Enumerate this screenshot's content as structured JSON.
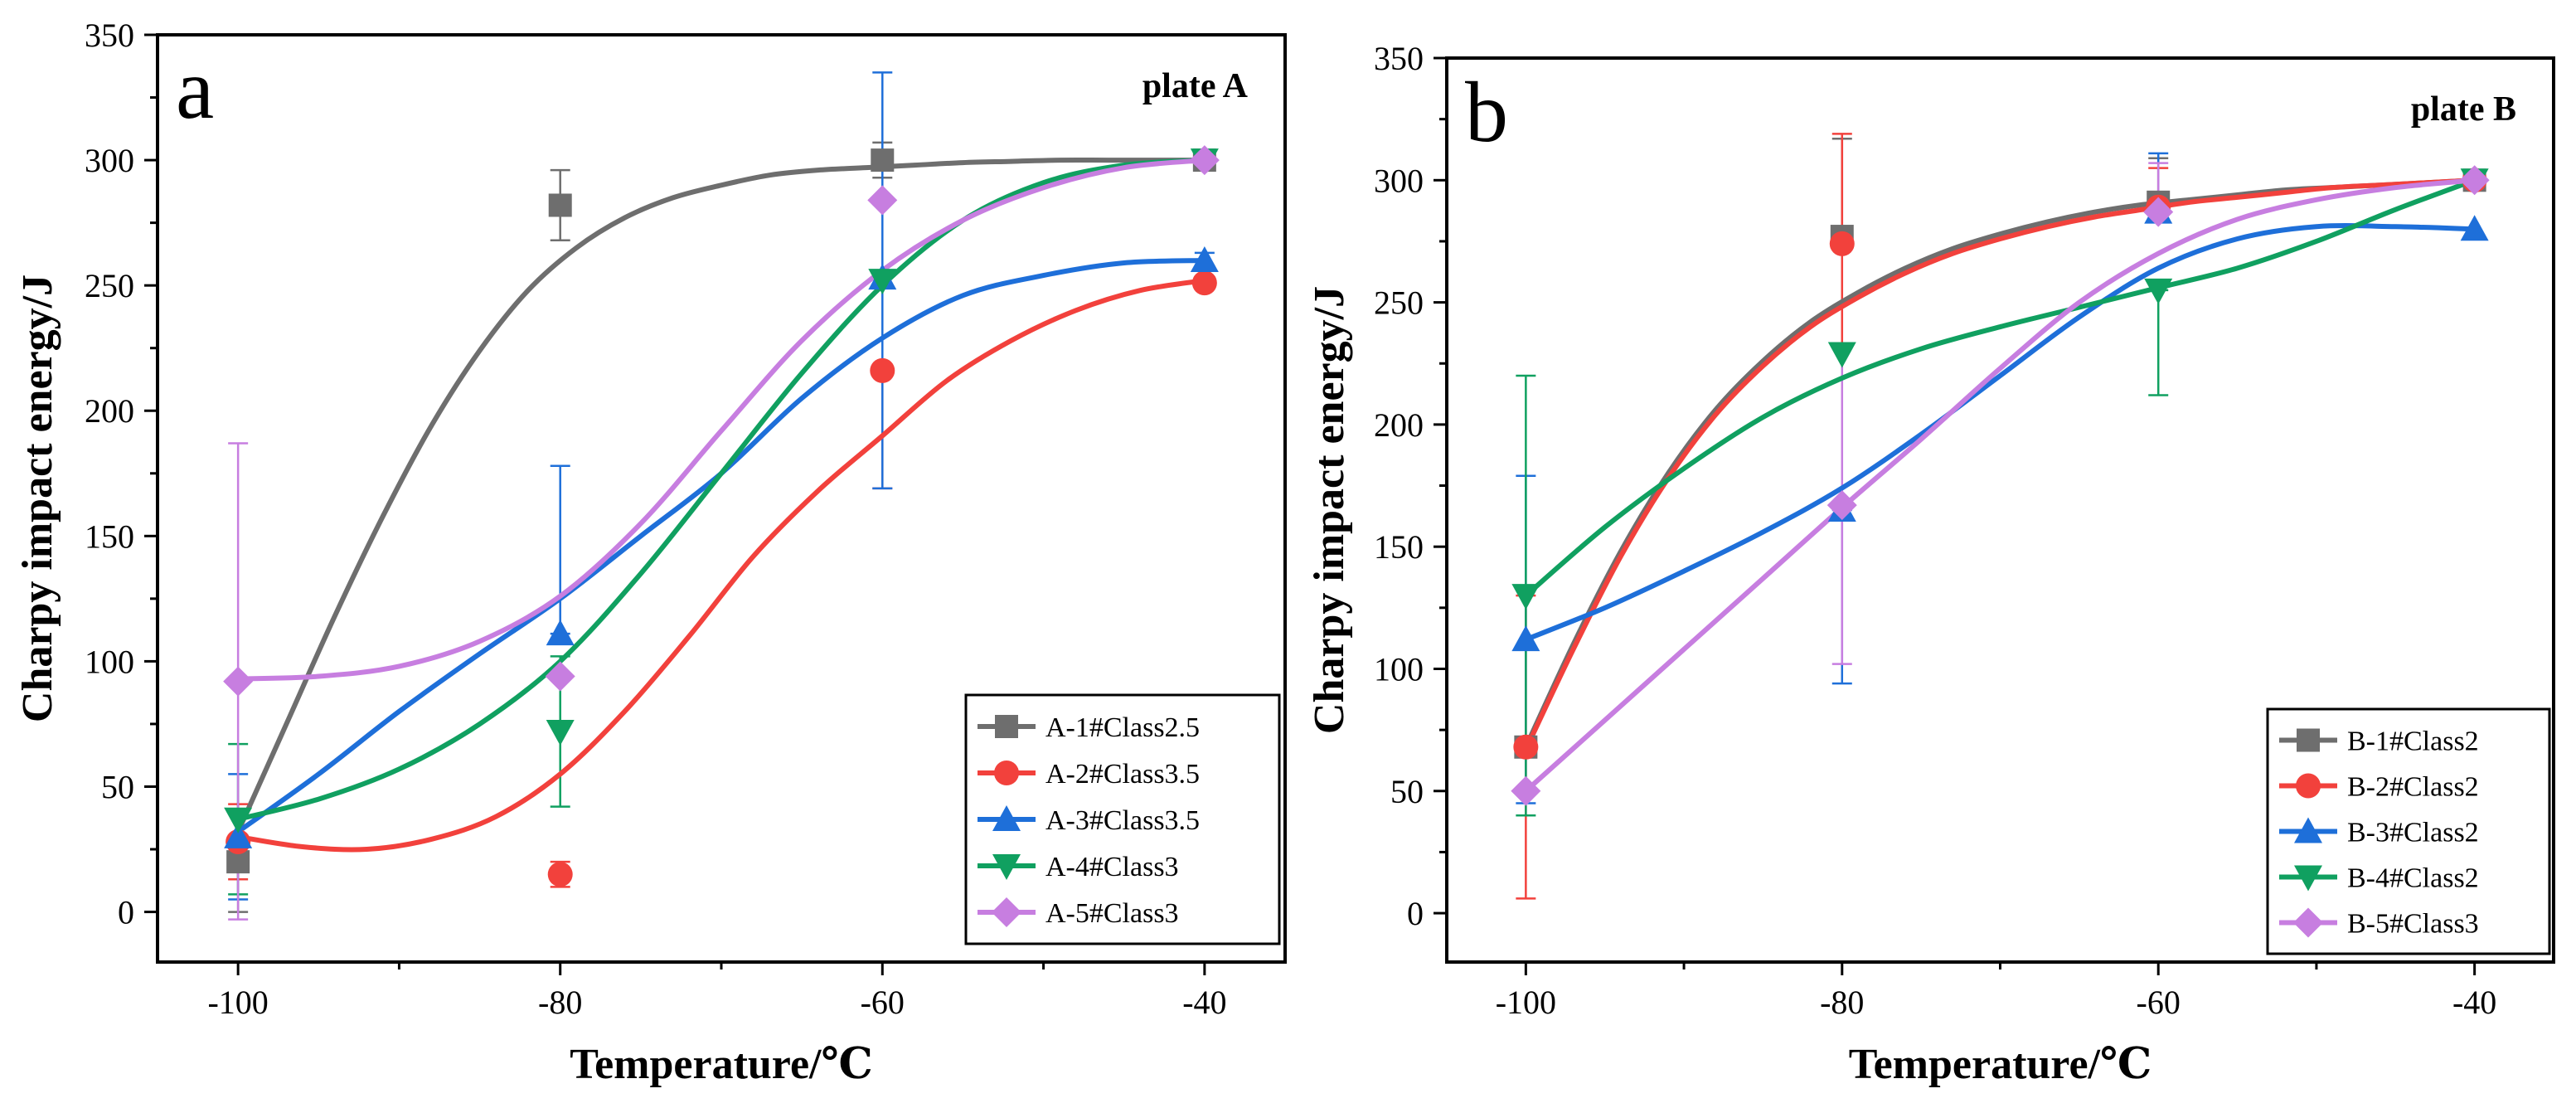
{
  "figure": {
    "panels": [
      {
        "letter": "a",
        "title": "plate A",
        "xlabel": "Temperature/℃",
        "ylabel": "Charpy impact energy/J"
      },
      {
        "letter": "b",
        "title": "plate B",
        "xlabel": "Temperature/℃",
        "ylabel": "Charpy impact energy/J"
      }
    ]
  },
  "chart_data": [
    {
      "type": "scatter",
      "title": "plate A",
      "panel_letter": "a",
      "xlabel": "Temperature/℃",
      "ylabel": "Charpy impact energy/J",
      "xlim": [
        -105,
        -35
      ],
      "ylim": [
        -20,
        350
      ],
      "xticks": [
        -100,
        -80,
        -60,
        -40
      ],
      "yticks": [
        0,
        50,
        100,
        150,
        200,
        250,
        300,
        350
      ],
      "grid": false,
      "legend_position": "bottom-right",
      "x": [
        -100,
        -80,
        -60,
        -40
      ],
      "series": [
        {
          "name": "A-1#Class2.5",
          "color": "#6e6e6e",
          "marker": "square",
          "values": [
            20,
            282,
            300,
            300
          ],
          "err_low": [
            20,
            14,
            7,
            0
          ],
          "err_high": [
            20,
            14,
            7,
            0
          ],
          "fit_x": [
            -100,
            -97,
            -94,
            -91,
            -88,
            -85,
            -82,
            -79,
            -76,
            -73,
            -70,
            -67,
            -64,
            -61,
            -58,
            -55,
            -52,
            -49,
            -46,
            -43,
            -40
          ],
          "fit_y": [
            32,
            75,
            118,
            158,
            194,
            224,
            248,
            265,
            277,
            285,
            290,
            294,
            296,
            297,
            298,
            299,
            299.5,
            300,
            300,
            300,
            300
          ]
        },
        {
          "name": "A-2#Class3.5",
          "color": "#f2413c",
          "marker": "circle",
          "values": [
            28,
            15,
            216,
            251
          ],
          "err_low": [
            15,
            5,
            47,
            0
          ],
          "err_high": [
            15,
            5,
            0,
            0
          ],
          "fit_x": [
            -100,
            -96,
            -92,
            -88,
            -84,
            -80,
            -76,
            -72,
            -68,
            -64,
            -60,
            -56,
            -52,
            -48,
            -44,
            -40
          ],
          "fit_y": [
            30,
            26,
            25,
            29,
            38,
            55,
            80,
            110,
            142,
            168,
            190,
            212,
            228,
            240,
            248,
            252
          ]
        },
        {
          "name": "A-3#Class3.5",
          "color": "#1e6fd9",
          "marker": "triangle-up",
          "values": [
            30,
            111,
            253,
            260
          ],
          "err_low": [
            25,
            0,
            84,
            3
          ],
          "err_high": [
            25,
            67,
            82,
            3
          ],
          "fit_x": [
            -100,
            -95,
            -90,
            -85,
            -80,
            -75,
            -70,
            -65,
            -60,
            -55,
            -50,
            -45,
            -40
          ],
          "fit_y": [
            32,
            55,
            80,
            103,
            125,
            150,
            175,
            205,
            229,
            246,
            254,
            259,
            260
          ]
        },
        {
          "name": "A-4#Class3",
          "color": "#10a060",
          "marker": "triangle-down",
          "values": [
            37,
            72,
            252,
            300
          ],
          "err_low": [
            30,
            30,
            0,
            0
          ],
          "err_high": [
            30,
            30,
            0,
            0
          ],
          "fit_x": [
            -100,
            -95,
            -90,
            -85,
            -80,
            -75,
            -70,
            -65,
            -60,
            -55,
            -50,
            -45,
            -40
          ],
          "fit_y": [
            37,
            45,
            57,
            75,
            100,
            135,
            175,
            215,
            250,
            276,
            291,
            298,
            300
          ]
        },
        {
          "name": "A-5#Class3",
          "color": "#c77ee0",
          "marker": "diamond",
          "values": [
            92,
            94,
            284,
            300
          ],
          "err_low": [
            95,
            0,
            0,
            0
          ],
          "err_high": [
            95,
            0,
            0,
            0
          ],
          "fit_x": [
            -100,
            -95,
            -90,
            -85,
            -80,
            -75,
            -70,
            -65,
            -60,
            -55,
            -50,
            -45,
            -40
          ],
          "fit_y": [
            93,
            94,
            98,
            108,
            126,
            155,
            192,
            228,
            256,
            276,
            289,
            297,
            300
          ]
        }
      ]
    },
    {
      "type": "scatter",
      "title": "plate B",
      "panel_letter": "b",
      "xlabel": "Temperature/℃",
      "ylabel": "Charpy impact energy/J",
      "xlim": [
        -105,
        -35
      ],
      "ylim": [
        -20,
        350
      ],
      "xticks": [
        -100,
        -80,
        -60,
        -40
      ],
      "yticks": [
        0,
        50,
        100,
        150,
        200,
        250,
        300,
        350
      ],
      "grid": false,
      "legend_position": "bottom-right",
      "x": [
        -100,
        -80,
        -60,
        -40
      ],
      "series": [
        {
          "name": "B-1#Class2",
          "color": "#6e6e6e",
          "marker": "square",
          "values": [
            68,
            277,
            291,
            300
          ],
          "err_low": [
            0,
            0,
            0,
            0
          ],
          "err_high": [
            0,
            40,
            18,
            0
          ],
          "fit_x": [
            -100,
            -97,
            -94,
            -91,
            -88,
            -85,
            -82,
            -79,
            -76,
            -73,
            -70,
            -67,
            -64,
            -61,
            -58,
            -55,
            -52,
            -49,
            -46,
            -43,
            -40
          ],
          "fit_y": [
            68,
            110,
            148,
            180,
            206,
            226,
            242,
            254,
            264,
            272,
            278,
            283,
            287,
            290,
            292,
            294,
            296,
            297,
            298,
            299,
            300
          ]
        },
        {
          "name": "B-2#Class2",
          "color": "#f2413c",
          "marker": "circle",
          "values": [
            68,
            274,
            289,
            300
          ],
          "err_low": [
            62,
            42,
            0,
            0
          ],
          "err_high": [
            62,
            45,
            16,
            0
          ],
          "fit_x": [
            -100,
            -97,
            -94,
            -91,
            -88,
            -85,
            -82,
            -79,
            -76,
            -73,
            -70,
            -67,
            -64,
            -61,
            -58,
            -55,
            -52,
            -49,
            -46,
            -43,
            -40
          ],
          "fit_y": [
            67,
            108,
            146,
            178,
            204,
            224,
            240,
            252,
            262,
            270,
            276,
            281,
            285,
            288,
            291,
            293,
            295,
            297,
            298,
            299,
            300
          ]
        },
        {
          "name": "B-3#Class2",
          "color": "#1e6fd9",
          "marker": "triangle-up",
          "values": [
            112,
            165,
            287,
            280
          ],
          "err_low": [
            67,
            71,
            0,
            0
          ],
          "err_high": [
            67,
            0,
            24,
            0
          ],
          "fit_x": [
            -100,
            -95,
            -90,
            -85,
            -80,
            -75,
            -70,
            -65,
            -60,
            -55,
            -50,
            -45,
            -40
          ],
          "fit_y": [
            112,
            125,
            140,
            156,
            174,
            196,
            220,
            244,
            264,
            276,
            281,
            281,
            280
          ]
        },
        {
          "name": "B-4#Class2",
          "color": "#10a060",
          "marker": "triangle-down",
          "values": [
            130,
            229,
            255,
            300
          ],
          "err_low": [
            90,
            0,
            43,
            0
          ],
          "err_high": [
            90,
            0,
            0,
            0
          ],
          "fit_x": [
            -100,
            -95,
            -90,
            -85,
            -80,
            -75,
            -70,
            -65,
            -60,
            -55,
            -50,
            -45,
            -40
          ],
          "fit_y": [
            130,
            158,
            182,
            203,
            219,
            231,
            240,
            248,
            256,
            264,
            275,
            288,
            300
          ]
        },
        {
          "name": "B-5#Class3",
          "color": "#c77ee0",
          "marker": "diamond",
          "values": [
            50,
            167,
            287,
            300
          ],
          "err_low": [
            0,
            65,
            0,
            0
          ],
          "err_high": [
            0,
            65,
            20,
            0
          ],
          "fit_x": [
            -100,
            -95,
            -90,
            -85,
            -80,
            -75,
            -70,
            -65,
            -60,
            -55,
            -50,
            -45,
            -40
          ],
          "fit_y": [
            50,
            79,
            108,
            137,
            166,
            194,
            223,
            250,
            270,
            284,
            292,
            297,
            300
          ]
        }
      ]
    }
  ]
}
